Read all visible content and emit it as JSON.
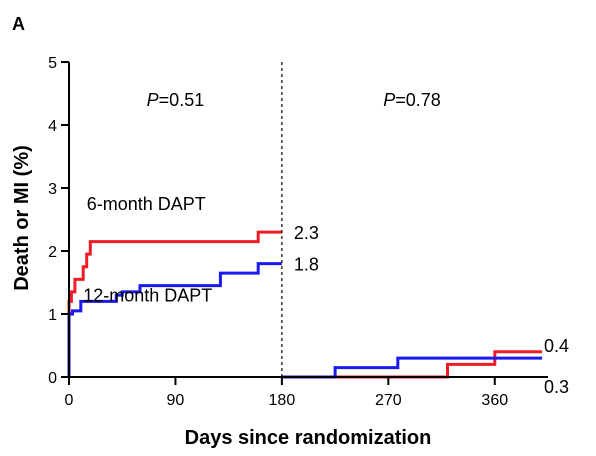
{
  "chart_data": {
    "type": "line",
    "panel_label": "A",
    "xlabel": "Days since randomization",
    "ylabel": "Death or MI (%)",
    "xlim": [
      0,
      405
    ],
    "ylim": [
      0,
      5
    ],
    "x_ticks": [
      0,
      90,
      180,
      270,
      360
    ],
    "y_ticks": [
      0,
      1,
      2,
      3,
      4,
      5
    ],
    "landmark_day": 180,
    "annotations": [
      {
        "prefix": "P",
        "text": "=0.51",
        "x": 90,
        "y": 4.3
      },
      {
        "prefix": "P",
        "text": "=0.78",
        "x": 290,
        "y": 4.3
      }
    ],
    "series": [
      {
        "name": "6-month DAPT",
        "color": "#ee1c25",
        "end_label": "2.3",
        "after_landmark_label": "0.4",
        "segments": [
          {
            "x": [
              0,
              0,
              2,
              2,
              5,
              5,
              12,
              12,
              15,
              15,
              18,
              18,
              160,
              160,
              180
            ],
            "y": [
              0,
              1.2,
              1.2,
              1.35,
              1.35,
              1.55,
              1.55,
              1.75,
              1.75,
              1.95,
              1.95,
              2.15,
              2.15,
              2.3,
              2.3
            ]
          },
          {
            "x": [
              180,
              320,
              320,
              360,
              360,
              400
            ],
            "y": [
              0,
              0,
              0.2,
              0.2,
              0.4,
              0.4
            ]
          }
        ]
      },
      {
        "name": "12-month DAPT",
        "color": "#1a1aee",
        "end_label": "1.8",
        "after_landmark_label": "0.3",
        "segments": [
          {
            "x": [
              0,
              0,
              3,
              3,
              10,
              10,
              40,
              40,
              45,
              45,
              60,
              60,
              128,
              128,
              160,
              160,
              180
            ],
            "y": [
              0,
              1.0,
              1.0,
              1.05,
              1.05,
              1.2,
              1.2,
              1.3,
              1.3,
              1.35,
              1.35,
              1.45,
              1.45,
              1.65,
              1.65,
              1.8,
              1.8
            ]
          },
          {
            "x": [
              180,
              225,
              225,
              278,
              278,
              400
            ],
            "y": [
              0,
              0,
              0.15,
              0.15,
              0.3,
              0.3
            ]
          }
        ]
      }
    ],
    "series_label_positions": {
      "6-month DAPT": {
        "x": 15,
        "y": 2.65
      },
      "12-month DAPT": {
        "x": 12,
        "y": 1.2
      }
    }
  }
}
